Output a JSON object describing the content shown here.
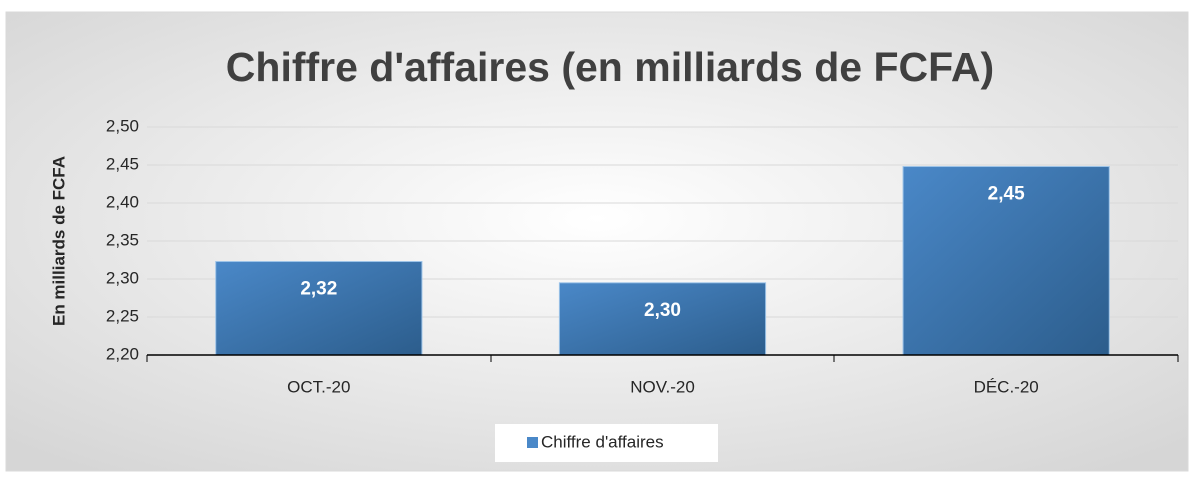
{
  "chart_data": {
    "type": "bar",
    "title": "Chiffre d'affaires (en milliards de FCFA)",
    "y_label": "En milliards de FCFA",
    "categories": [
      "OCT.-20",
      "NOV.-20",
      "DÉC.-20"
    ],
    "series": [
      {
        "name": "Chiffre d'affaires",
        "color": "#4a88c8",
        "values": [
          2.323,
          2.295,
          2.448
        ],
        "value_labels": [
          "2,32",
          "2,30",
          "2,45"
        ]
      }
    ],
    "ylim": [
      2.2,
      2.5
    ],
    "yticks": [
      {
        "value": 2.2,
        "label": "2,20"
      },
      {
        "value": 2.25,
        "label": "2,25"
      },
      {
        "value": 2.3,
        "label": "2,30"
      },
      {
        "value": 2.35,
        "label": "2,35"
      },
      {
        "value": 2.4,
        "label": "2,40"
      },
      {
        "value": 2.45,
        "label": "2,45"
      },
      {
        "value": 2.5,
        "label": "2,50"
      }
    ],
    "grid": true,
    "legend": "bottom"
  }
}
